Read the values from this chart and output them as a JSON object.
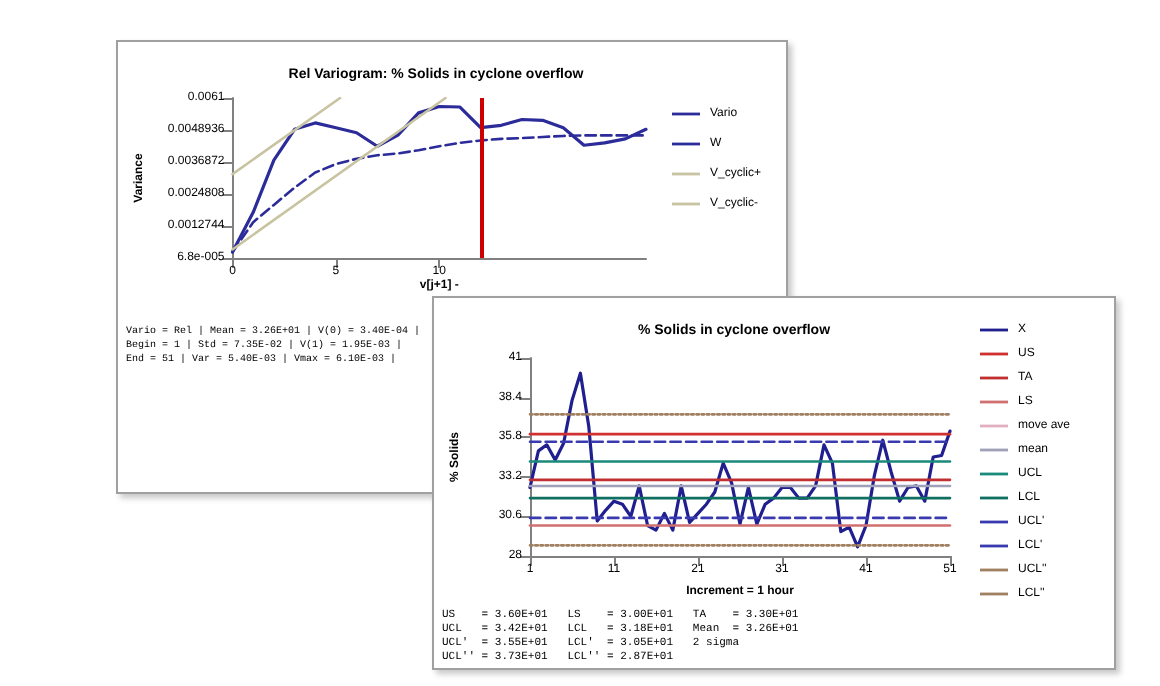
{
  "chart_data": [
    {
      "type": "line",
      "title": "Rel Variogram: % Solids in cyclone overflow",
      "xlabel": "v[j+1] -",
      "ylabel": "Variance",
      "x": [
        0,
        1,
        2,
        3,
        4,
        5,
        6,
        7,
        8,
        9,
        10,
        11,
        12,
        13,
        14,
        15,
        16,
        17,
        18,
        19,
        20
      ],
      "series": [
        {
          "name": "Vario",
          "color": "#2b2b9a",
          "line_style": "solid",
          "values": [
            0.00029,
            0.00179,
            0.00376,
            0.00492,
            0.00516,
            0.00498,
            0.00479,
            0.00428,
            0.0047,
            0.00554,
            0.00578,
            0.00576,
            0.00498,
            0.00507,
            0.00529,
            0.00526,
            0.00498,
            0.00432,
            0.00441,
            0.00456,
            0.00492
          ]
        },
        {
          "name": "W",
          "color": "#2b2b9a",
          "line_style": "dashed",
          "values": [
            0.00029,
            0.00142,
            0.00207,
            0.00272,
            0.00329,
            0.00361,
            0.00381,
            0.00394,
            0.00401,
            0.00413,
            0.00428,
            0.00441,
            0.0045,
            0.00456,
            0.00459,
            0.00463,
            0.00467,
            0.00469,
            0.00469,
            0.00469,
            0.00469
          ]
        },
        {
          "name": "V_cyclic+",
          "color": "#c8c3a0",
          "line_style": "solid",
          "x": [
            0,
            5.2
          ],
          "values": [
            0.00323,
            0.0061
          ]
        },
        {
          "name": "V_cyclic-",
          "color": "#c8c3a0",
          "line_style": "solid",
          "x": [
            0,
            10.3
          ],
          "values": [
            0.00039,
            0.0061
          ]
        }
      ],
      "xlim": [
        0,
        20
      ],
      "xticks": [
        0,
        5,
        10
      ],
      "ylim": [
        6.8e-05,
        0.0061
      ],
      "yticks": [
        {
          "value": 6.8e-05,
          "label": "6.8e-005"
        },
        0.0012744,
        0.0024808,
        0.0036872,
        0.0048936,
        0.0061
      ],
      "ref_lines": [
        {
          "axis": "x",
          "value": 12,
          "color": "#cc0000"
        }
      ],
      "legend": "right",
      "marker": "none",
      "grid": false,
      "annotations": [
        "Vario = Rel | Mean = 3.26E+01 | V(0) = 3.40E-04 |",
        "Begin = 1 | Std = 7.35E-02 | V(1) = 1.95E-03 |",
        "End = 51 | Var = 5.40E-03 | Vmax = 6.10E-03 |"
      ]
    },
    {
      "type": "line",
      "title": "% Solids in cyclone overflow",
      "xlabel": "Increment = 1 hour",
      "ylabel": "% Solids",
      "x": [
        1,
        2,
        3,
        4,
        5,
        6,
        7,
        8,
        9,
        10,
        11,
        12,
        13,
        14,
        15,
        16,
        17,
        18,
        19,
        20,
        21,
        22,
        23,
        24,
        25,
        26,
        27,
        28,
        29,
        30,
        31,
        32,
        33,
        34,
        35,
        36,
        37,
        38,
        39,
        40,
        41,
        42,
        43,
        44,
        45,
        46,
        47,
        48,
        49,
        50,
        51
      ],
      "series": [
        {
          "name": "X",
          "color": "#1f1f8f",
          "line_style": "solid",
          "values": [
            32.5,
            34.9,
            35.3,
            34.3,
            35.4,
            38.2,
            40.0,
            36.5,
            30.3,
            31.0,
            31.6,
            31.4,
            30.6,
            32.6,
            30.0,
            29.7,
            30.8,
            29.7,
            32.6,
            30.2,
            30.8,
            31.4,
            32.2,
            34.1,
            32.8,
            30.1,
            32.5,
            30.1,
            31.4,
            31.8,
            32.5,
            32.5,
            31.8,
            31.8,
            32.6,
            35.3,
            34.1,
            29.6,
            29.9,
            28.6,
            30.0,
            33.3,
            35.6,
            33.5,
            31.6,
            32.5,
            32.6,
            31.6,
            34.5,
            34.6,
            36.2
          ]
        },
        {
          "name": "US",
          "color": "#d03030",
          "line_style": "solid",
          "x": [
            1,
            51
          ],
          "values": [
            36.0,
            36.0
          ]
        },
        {
          "name": "TA",
          "color": "#c03030",
          "line_style": "solid",
          "x": [
            1,
            51
          ],
          "values": [
            33.0,
            33.0
          ]
        },
        {
          "name": "LS",
          "color": "#d07070",
          "line_style": "solid",
          "x": [
            1,
            51
          ],
          "values": [
            30.0,
            30.0
          ]
        },
        {
          "name": "move ave",
          "color": "#e0b0c0",
          "line_style": "solid",
          "values": [
            null,
            null,
            null,
            null,
            null,
            null,
            null,
            null,
            null,
            null,
            null,
            null,
            null,
            null,
            null,
            null,
            null,
            null,
            null,
            null,
            null,
            null,
            null,
            null,
            null,
            null,
            null,
            null,
            null,
            null,
            null,
            null,
            null,
            null,
            null,
            null,
            null,
            null,
            null,
            null,
            null,
            null,
            null,
            null,
            null,
            null,
            null,
            null,
            null,
            null,
            null
          ]
        },
        {
          "name": "mean",
          "color": "#a0a0b8",
          "line_style": "solid",
          "x": [
            1,
            51
          ],
          "values": [
            32.6,
            32.6
          ]
        },
        {
          "name": "UCL",
          "color": "#1a8a7a",
          "line_style": "solid",
          "x": [
            1,
            51
          ],
          "values": [
            34.2,
            34.2
          ]
        },
        {
          "name": "LCL",
          "color": "#0f6f60",
          "line_style": "solid",
          "x": [
            1,
            51
          ],
          "values": [
            31.8,
            31.8
          ]
        },
        {
          "name": "UCL'",
          "color": "#3a3ab0",
          "line_style": "dashed",
          "x": [
            1,
            51
          ],
          "values": [
            35.5,
            35.5
          ]
        },
        {
          "name": "LCL'",
          "color": "#3a3ab0",
          "line_style": "dashed",
          "x": [
            1,
            51
          ],
          "values": [
            30.5,
            30.5
          ]
        },
        {
          "name": "UCL''",
          "color": "#a08060",
          "line_style": "dotted",
          "x": [
            1,
            51
          ],
          "values": [
            37.3,
            37.3
          ]
        },
        {
          "name": "LCL''",
          "color": "#a08060",
          "line_style": "dotted",
          "x": [
            1,
            51
          ],
          "values": [
            28.7,
            28.7
          ]
        }
      ],
      "xlim": [
        1,
        51
      ],
      "xticks": [
        1,
        11,
        21,
        31,
        41,
        51
      ],
      "ylim": [
        28,
        41
      ],
      "yticks": [
        28,
        30.6,
        33.2,
        35.8,
        38.4,
        41
      ],
      "legend": "right",
      "marker": "none",
      "grid": false,
      "annotations": [
        "US    = 3.60E+01   LS    = 3.00E+01   TA    = 3.30E+01",
        "UCL   = 3.42E+01   LCL   = 3.18E+01   Mean  = 3.26E+01",
        "UCL'  = 3.55E+01   LCL'  = 3.05E+01   2 sigma",
        "UCL'' = 3.73E+01   LCL'' = 2.87E+01"
      ]
    }
  ]
}
